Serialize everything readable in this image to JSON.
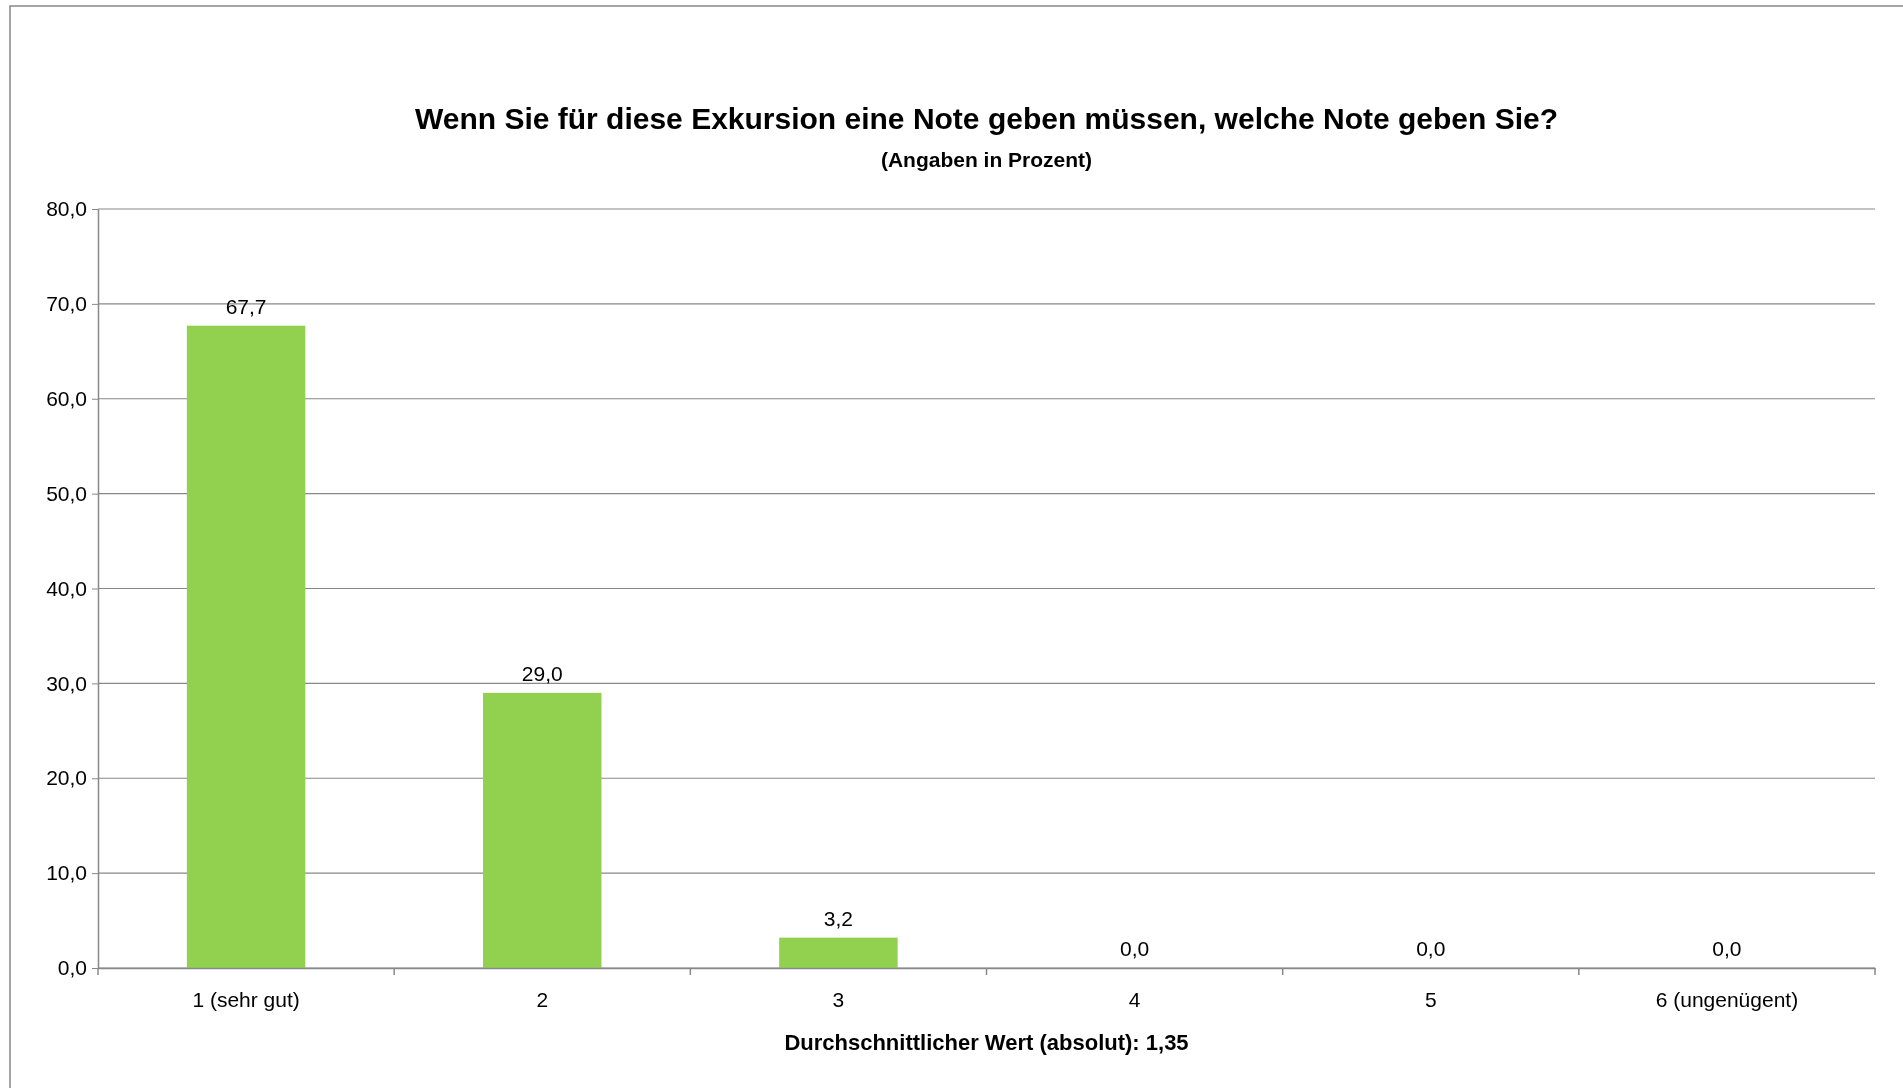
{
  "chart_data": {
    "type": "bar",
    "title": "Wenn Sie für diese Exkursion eine Note geben müssen, welche Note geben Sie?",
    "subtitle": "(Angaben in Prozent)",
    "xlabel": "Durchschnittlicher Wert (absolut): 1,35",
    "categories": [
      "1 (sehr gut)",
      "2",
      "3",
      "4",
      "5",
      "6 (ungenügent)"
    ],
    "values": [
      67.7,
      29.0,
      3.2,
      0.0,
      0.0,
      0.0
    ],
    "value_labels": [
      "67,7",
      "29,0",
      "3,2",
      "0,0",
      "0,0",
      "0,0"
    ],
    "color": "#92d050",
    "ylim": [
      0,
      80
    ],
    "yticks": [
      {
        "value": 0,
        "label": "0,0"
      },
      {
        "value": 10,
        "label": "10,0"
      },
      {
        "value": 20,
        "label": "20,0"
      },
      {
        "value": 30,
        "label": "30,0"
      },
      {
        "value": 40,
        "label": "40,0"
      },
      {
        "value": 50,
        "label": "50,0"
      },
      {
        "value": 60,
        "label": "60,0"
      },
      {
        "value": 70,
        "label": "70,0"
      },
      {
        "value": 80,
        "label": "80,0"
      }
    ],
    "grid": "y"
  }
}
